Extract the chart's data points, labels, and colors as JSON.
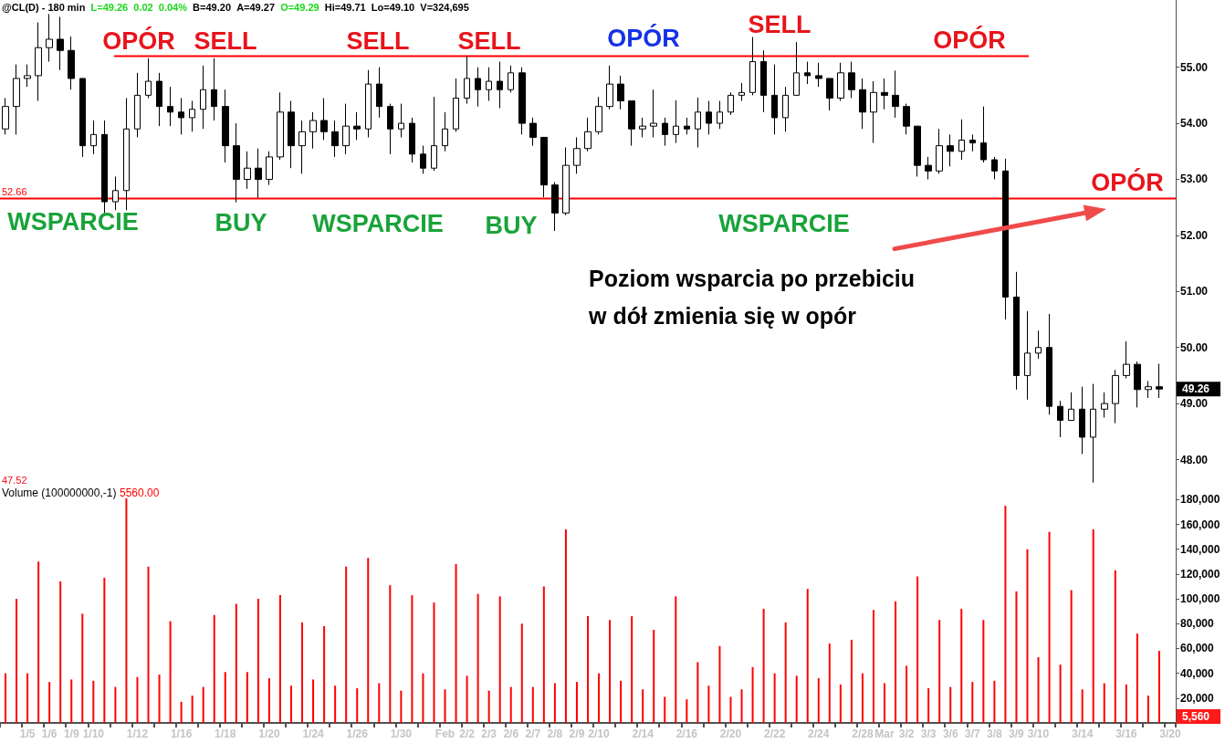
{
  "chart_data": [
    {
      "type": "candlestick",
      "title": "@CL(D) - 180 min",
      "subtitle": "L=49.26 0.02 0.04% B=49.20 A=49.27 O=49.29 Hi=49.71 Lo=49.10 V=324,695",
      "categories": [
        null,
        null,
        null,
        null,
        null,
        null,
        null,
        null,
        null,
        null,
        null,
        null,
        null,
        null,
        null,
        null,
        null,
        null,
        null,
        null,
        null,
        null,
        null,
        null,
        null,
        null,
        null,
        null,
        null,
        null,
        null,
        null,
        null,
        null,
        null,
        null,
        null,
        null,
        null,
        null,
        null,
        null,
        null,
        null,
        null,
        null,
        null,
        null,
        null,
        null,
        null,
        null,
        null,
        null,
        null,
        null,
        null,
        null,
        null,
        null,
        null,
        null,
        null,
        null,
        null,
        null,
        null,
        null,
        null,
        null,
        null,
        null,
        null,
        null,
        null,
        null,
        null,
        null,
        null,
        null,
        null,
        null,
        null,
        null,
        null,
        null,
        null,
        null,
        null,
        null,
        null,
        null,
        null,
        null,
        null,
        null,
        null,
        null,
        null,
        null,
        null,
        null,
        null,
        null,
        null,
        null,
        null
      ],
      "ohlc": [
        [
          53.9,
          54.45,
          53.8,
          54.3
        ],
        [
          54.3,
          55.05,
          53.8,
          54.8
        ],
        [
          54.8,
          55.05,
          54.65,
          54.85
        ],
        [
          54.85,
          55.8,
          54.4,
          55.35
        ],
        [
          55.35,
          55.95,
          55.1,
          55.5
        ],
        [
          55.5,
          55.9,
          54.95,
          55.3
        ],
        [
          55.3,
          55.55,
          54.6,
          54.8
        ],
        [
          54.8,
          54.8,
          53.4,
          53.6
        ],
        [
          53.6,
          54.05,
          53.45,
          53.8
        ],
        [
          53.8,
          54.05,
          52.4,
          52.6
        ],
        [
          52.6,
          53.05,
          52.45,
          52.8
        ],
        [
          52.8,
          54.45,
          52.45,
          53.9
        ],
        [
          53.9,
          54.9,
          53.75,
          54.5
        ],
        [
          54.5,
          55.16,
          54.45,
          54.75
        ],
        [
          54.75,
          54.9,
          53.95,
          54.3
        ],
        [
          54.3,
          54.65,
          53.95,
          54.2
        ],
        [
          54.2,
          54.45,
          53.8,
          54.1
        ],
        [
          54.1,
          54.4,
          53.85,
          54.25
        ],
        [
          54.25,
          55.03,
          53.9,
          54.6
        ],
        [
          54.6,
          55.16,
          54.05,
          54.3
        ],
        [
          54.3,
          54.6,
          53.3,
          53.6
        ],
        [
          53.6,
          54.0,
          52.59,
          53.0
        ],
        [
          53.0,
          53.5,
          52.83,
          53.2
        ],
        [
          53.2,
          53.55,
          52.67,
          53.0
        ],
        [
          53.0,
          53.5,
          52.9,
          53.4
        ],
        [
          53.4,
          54.55,
          53.35,
          54.2
        ],
        [
          54.2,
          54.4,
          53.2,
          53.6
        ],
        [
          53.6,
          54.05,
          53.1,
          53.85
        ],
        [
          53.85,
          54.2,
          53.55,
          54.05
        ],
        [
          54.05,
          54.45,
          53.7,
          53.85
        ],
        [
          53.85,
          54.05,
          53.4,
          53.6
        ],
        [
          53.6,
          54.35,
          53.45,
          53.95
        ],
        [
          53.95,
          54.2,
          53.7,
          53.9
        ],
        [
          53.9,
          54.95,
          53.75,
          54.7
        ],
        [
          54.7,
          55.0,
          54.1,
          54.3
        ],
        [
          54.3,
          54.35,
          53.45,
          53.9
        ],
        [
          53.9,
          54.35,
          53.75,
          54.0
        ],
        [
          54.0,
          54.1,
          53.3,
          53.45
        ],
        [
          53.45,
          53.6,
          53.1,
          53.2
        ],
        [
          53.2,
          54.47,
          53.15,
          53.6
        ],
        [
          53.6,
          54.2,
          53.5,
          53.9
        ],
        [
          53.9,
          54.8,
          53.85,
          54.45
        ],
        [
          54.45,
          55.2,
          54.35,
          54.8
        ],
        [
          54.8,
          55.0,
          54.3,
          54.6
        ],
        [
          54.6,
          55.0,
          54.4,
          54.75
        ],
        [
          54.75,
          55.1,
          54.27,
          54.6
        ],
        [
          54.6,
          55.03,
          54.55,
          54.9
        ],
        [
          54.9,
          55.0,
          53.8,
          54.0
        ],
        [
          54.0,
          54.1,
          53.6,
          53.75
        ],
        [
          53.75,
          53.75,
          52.68,
          52.9
        ],
        [
          52.9,
          52.95,
          52.08,
          52.4
        ],
        [
          52.4,
          53.57,
          52.36,
          53.25
        ],
        [
          53.25,
          53.75,
          53.1,
          53.55
        ],
        [
          53.55,
          54.1,
          53.5,
          53.85
        ],
        [
          53.85,
          54.47,
          53.8,
          54.3
        ],
        [
          54.3,
          55.03,
          54.25,
          54.7
        ],
        [
          54.7,
          54.85,
          54.25,
          54.4
        ],
        [
          54.4,
          54.4,
          53.6,
          53.9
        ],
        [
          53.9,
          54.1,
          53.75,
          53.95
        ],
        [
          53.95,
          54.6,
          53.75,
          54.0
        ],
        [
          54.0,
          54.1,
          53.6,
          53.8
        ],
        [
          53.8,
          54.41,
          53.65,
          53.95
        ],
        [
          53.95,
          54.1,
          53.8,
          53.9
        ],
        [
          53.9,
          54.46,
          53.57,
          54.2
        ],
        [
          54.2,
          54.4,
          53.8,
          54.0
        ],
        [
          54.0,
          54.4,
          53.9,
          54.2
        ],
        [
          54.2,
          54.55,
          54.15,
          54.5
        ],
        [
          54.5,
          54.72,
          54.4,
          54.55
        ],
        [
          54.55,
          55.54,
          54.5,
          55.1
        ],
        [
          55.1,
          55.3,
          54.2,
          54.5
        ],
        [
          54.5,
          55.05,
          53.8,
          54.1
        ],
        [
          54.1,
          54.65,
          53.85,
          54.5
        ],
        [
          54.5,
          55.45,
          54.5,
          54.9
        ],
        [
          54.9,
          55.1,
          54.7,
          54.85
        ],
        [
          54.85,
          55.08,
          54.65,
          54.8
        ],
        [
          54.8,
          54.8,
          54.23,
          54.45
        ],
        [
          54.45,
          55.08,
          54.4,
          54.9
        ],
        [
          54.9,
          55.1,
          54.45,
          54.6
        ],
        [
          54.6,
          54.8,
          53.9,
          54.2
        ],
        [
          54.2,
          54.75,
          53.65,
          54.55
        ],
        [
          54.55,
          54.8,
          54.25,
          54.5
        ],
        [
          54.5,
          54.94,
          54.1,
          54.3
        ],
        [
          54.3,
          54.35,
          53.8,
          53.95
        ],
        [
          53.95,
          53.95,
          53.05,
          53.25
        ],
        [
          53.25,
          53.4,
          53.0,
          53.15
        ],
        [
          53.15,
          53.9,
          53.1,
          53.6
        ],
        [
          53.6,
          53.8,
          53.23,
          53.5
        ],
        [
          53.5,
          54.07,
          53.35,
          53.7
        ],
        [
          53.7,
          53.8,
          53.5,
          53.65
        ],
        [
          53.65,
          54.3,
          53.3,
          53.35
        ],
        [
          53.35,
          53.4,
          53.0,
          53.15
        ],
        [
          53.15,
          53.37,
          50.5,
          50.9
        ],
        [
          50.9,
          51.35,
          49.25,
          49.5
        ],
        [
          49.5,
          50.65,
          49.07,
          49.9
        ],
        [
          49.9,
          50.3,
          49.8,
          50.0
        ],
        [
          50.0,
          50.6,
          48.8,
          48.95
        ],
        [
          48.95,
          49.05,
          48.4,
          48.7
        ],
        [
          48.7,
          49.2,
          48.7,
          48.9
        ],
        [
          48.9,
          49.3,
          48.1,
          48.4
        ],
        [
          48.4,
          49.35,
          47.59,
          48.9
        ],
        [
          48.9,
          49.2,
          48.75,
          49.0
        ],
        [
          49.0,
          49.6,
          48.65,
          49.5
        ],
        [
          49.5,
          50.11,
          49.45,
          49.7
        ],
        [
          49.7,
          49.75,
          48.93,
          49.25
        ],
        [
          49.25,
          49.4,
          49.1,
          49.3
        ],
        [
          49.3,
          49.71,
          49.1,
          49.26
        ],
        null
      ],
      "color": "#000000",
      "ylim": [
        47.52,
        56.2
      ],
      "yticks": [
        {
          "value": 48,
          "label": "48.00"
        },
        {
          "value": 49,
          "label": "49.00"
        },
        {
          "value": 50,
          "label": "50.00"
        },
        {
          "value": 51,
          "label": "51.00"
        },
        {
          "value": 52,
          "label": "52.00"
        },
        {
          "value": 53,
          "label": "53.00"
        },
        {
          "value": 54,
          "label": "54.00"
        },
        {
          "value": 55,
          "label": "55.00"
        }
      ],
      "ref_lines": [
        {
          "axis": "y",
          "value": 55.2,
          "color": "#ff0000"
        },
        {
          "axis": "y",
          "value": 52.66,
          "label": "52.66",
          "color": "#ff0000"
        }
      ],
      "annotations": [
        "OPÓR",
        "SELL",
        "SELL",
        "SELL",
        "OPÓR",
        "SELL",
        "OPÓR",
        "WSPARCIE",
        "BUY",
        "WSPARCIE",
        "BUY",
        "WSPARCIE",
        "OPÓR",
        "Poziom wsparcia po przebiciu",
        "w dół zmienia się w opór",
        "47.52",
        "49.26"
      ],
      "tick_labels": "y"
    },
    {
      "type": "bar",
      "title": "Volume (100000000,-1)",
      "categories": [
        null,
        null,
        "1/5",
        null,
        "1/6",
        null,
        "1/9",
        null,
        "1/10",
        null,
        null,
        null,
        "1/12",
        null,
        null,
        null,
        "1/16",
        null,
        null,
        null,
        "1/18",
        null,
        null,
        null,
        "1/20",
        null,
        null,
        null,
        "1/24",
        null,
        null,
        null,
        "1/26",
        null,
        null,
        null,
        "1/30",
        null,
        null,
        null,
        "Feb",
        null,
        "2/2",
        null,
        "2/3",
        null,
        "2/6",
        null,
        "2/7",
        null,
        "2/8",
        null,
        "2/9",
        null,
        "2/10",
        null,
        null,
        null,
        "2/14",
        null,
        null,
        null,
        "2/16",
        null,
        null,
        null,
        "2/20",
        null,
        null,
        null,
        "2/22",
        null,
        null,
        null,
        "2/24",
        null,
        null,
        null,
        "2/28",
        null,
        "Mar",
        null,
        "3/2",
        null,
        "3/3",
        null,
        "3/6",
        null,
        "3/7",
        null,
        "3/8",
        null,
        "3/9",
        null,
        "3/10",
        null,
        null,
        null,
        "3/14",
        null,
        null,
        null,
        "3/16",
        null,
        null,
        null,
        "3/20"
      ],
      "values": [
        40000,
        100000,
        40000,
        130000,
        33000,
        114000,
        35000,
        88000,
        34000,
        117000,
        29000,
        181000,
        37000,
        126000,
        39000,
        82000,
        17000,
        22000,
        29000,
        87000,
        41000,
        96000,
        41000,
        100000,
        36000,
        103000,
        30000,
        81000,
        35000,
        78000,
        30000,
        126000,
        28000,
        133000,
        32000,
        111000,
        26000,
        103000,
        40000,
        97000,
        27000,
        128000,
        38000,
        104000,
        26000,
        102000,
        29000,
        80000,
        29000,
        110000,
        32000,
        156000,
        33000,
        86000,
        40000,
        83000,
        34000,
        86000,
        27000,
        75000,
        21000,
        102000,
        19000,
        49000,
        30000,
        62000,
        21000,
        27000,
        45000,
        92000,
        40000,
        81000,
        38000,
        108000,
        36000,
        64000,
        31000,
        67000,
        40000,
        91000,
        32000,
        98000,
        46000,
        118000,
        28000,
        83000,
        29000,
        92000,
        33000,
        83000,
        34000,
        175000,
        106000,
        140000,
        53000,
        154000,
        47000,
        107000,
        27000,
        156000,
        32000,
        123000,
        31000,
        72000,
        22000,
        58000,
        null
      ],
      "color": "#ff0000",
      "ylim": [
        0,
        192000
      ],
      "yticks": [
        {
          "value": 20000,
          "label": "20,000"
        },
        {
          "value": 40000,
          "label": "40,000"
        },
        {
          "value": 60000,
          "label": "60,000"
        },
        {
          "value": 80000,
          "label": "80,000"
        },
        {
          "value": 100000,
          "label": "100,000"
        },
        {
          "value": 120000,
          "label": "120,000"
        },
        {
          "value": 140000,
          "label": "140,000"
        },
        {
          "value": 160000,
          "label": "160,000"
        },
        {
          "value": 180000,
          "label": "180,000"
        }
      ],
      "annotations": [
        "5560.00",
        "5,560"
      ]
    }
  ]
}
